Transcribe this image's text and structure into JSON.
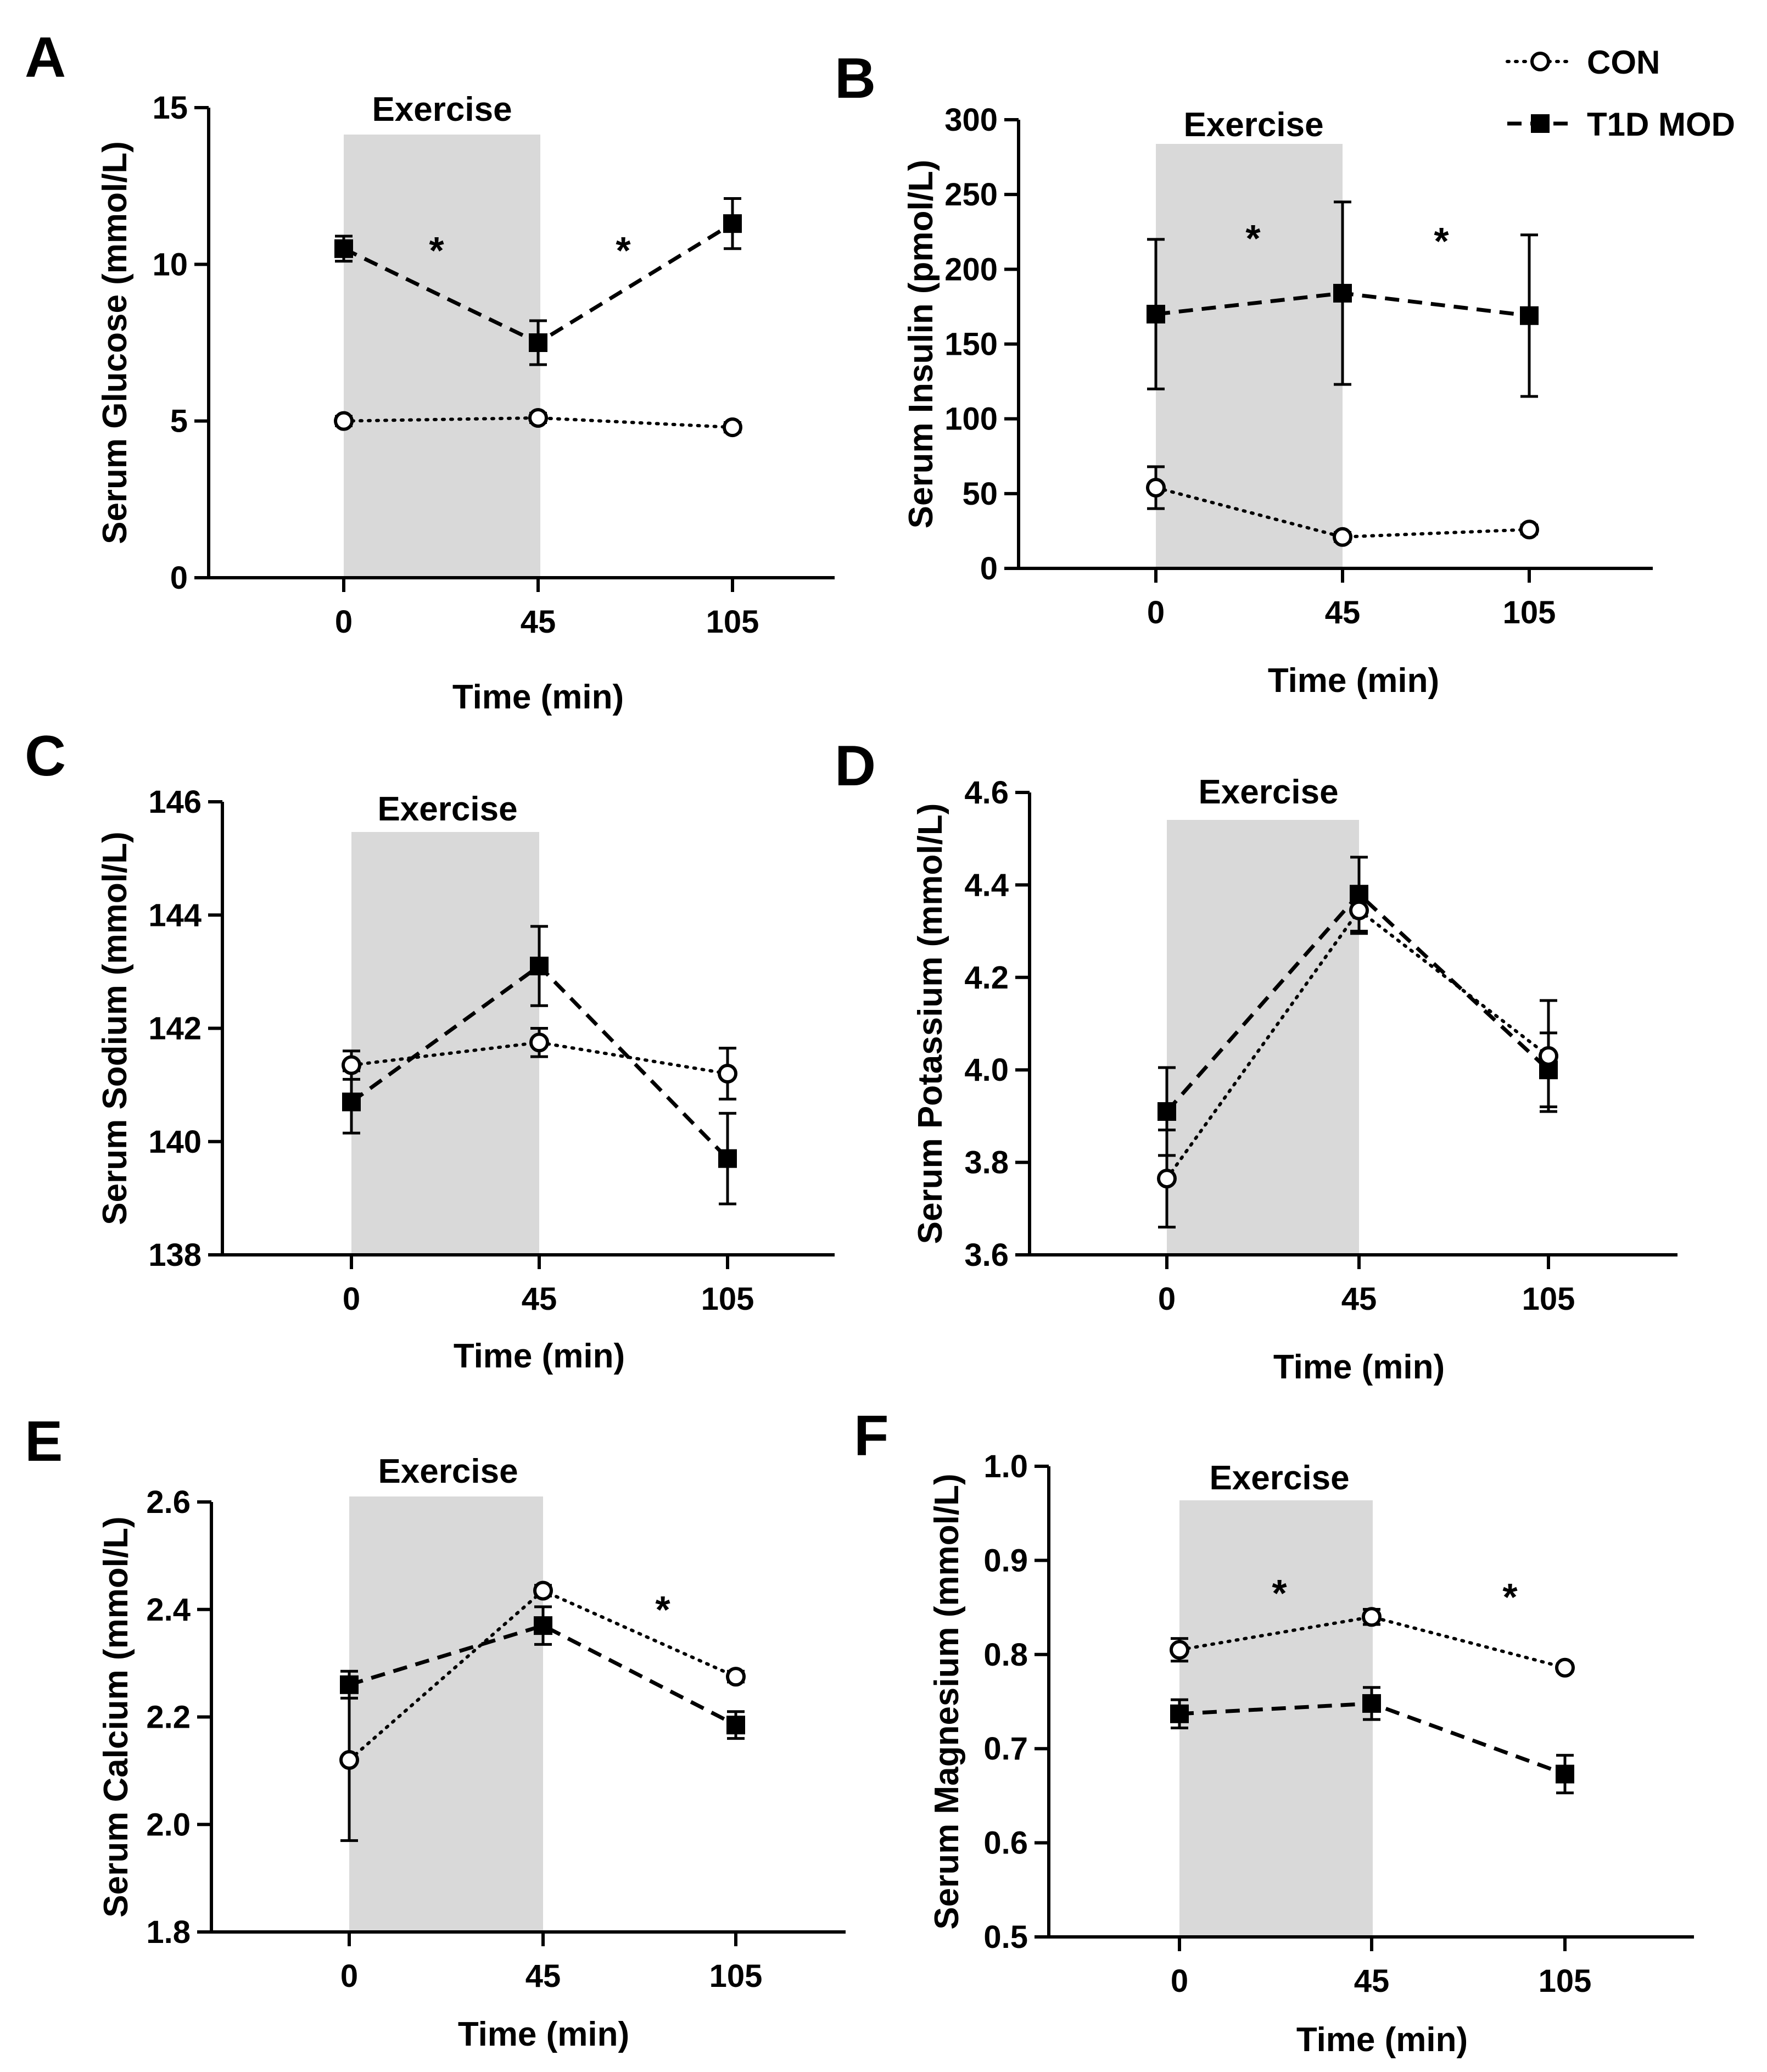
{
  "legend": [
    {
      "name": "CON",
      "marker": "open-circle",
      "line": "dotted"
    },
    {
      "name": "T1D MOD",
      "marker": "filled-square",
      "line": "dashed"
    }
  ],
  "colors": {
    "shade": "#d9d9d9",
    "ink": "#000000",
    "background": "#ffffff"
  },
  "chart_data": [
    {
      "type": "line",
      "panel": "A",
      "ylabel": "Serum Glucose (mmol/L)",
      "xlabel": "Time (min)",
      "categories": [
        "0",
        "45",
        "105"
      ],
      "ylim": [
        0,
        15
      ],
      "yticks": [
        0,
        5,
        10,
        15
      ],
      "ytick_labels": [
        "0",
        "5",
        "10",
        "15"
      ],
      "shade_label": "Exercise",
      "shade_range": [
        "0",
        "45"
      ],
      "series": [
        {
          "name": "CON",
          "values": [
            5.0,
            5.1,
            4.8
          ],
          "errors": [
            0.15,
            0.15,
            0.15
          ]
        },
        {
          "name": "T1D MOD",
          "values": [
            10.5,
            7.5,
            11.3
          ],
          "errors": [
            0.4,
            0.7,
            0.8
          ]
        }
      ],
      "annotations": [
        "*",
        "*"
      ]
    },
    {
      "type": "line",
      "panel": "B",
      "ylabel": "Serum Insulin (pmol/L)",
      "xlabel": "Time (min)",
      "categories": [
        "0",
        "45",
        "105"
      ],
      "ylim": [
        0,
        300
      ],
      "yticks": [
        0,
        50,
        100,
        150,
        200,
        250,
        300
      ],
      "ytick_labels": [
        "0",
        "50",
        "100",
        "150",
        "200",
        "250",
        "300"
      ],
      "shade_label": "Exercise",
      "shade_range": [
        "0",
        "45"
      ],
      "series": [
        {
          "name": "CON",
          "values": [
            54,
            21,
            26
          ],
          "errors": [
            14,
            3,
            3
          ]
        },
        {
          "name": "T1D MOD",
          "values": [
            170,
            184,
            169
          ],
          "errors": [
            50,
            61,
            54
          ]
        }
      ],
      "annotations": [
        "*",
        "*"
      ]
    },
    {
      "type": "line",
      "panel": "C",
      "ylabel": "Serum Sodium (mmol/L)",
      "xlabel": "Time (min)",
      "categories": [
        "0",
        "45",
        "105"
      ],
      "ylim": [
        138,
        146
      ],
      "yticks": [
        138,
        140,
        142,
        144,
        146
      ],
      "ytick_labels": [
        "138",
        "140",
        "142",
        "144",
        "146"
      ],
      "shade_label": "Exercise",
      "shade_range": [
        "0",
        "45"
      ],
      "series": [
        {
          "name": "CON",
          "values": [
            141.35,
            141.75,
            141.2
          ],
          "errors": [
            0.25,
            0.25,
            0.45
          ]
        },
        {
          "name": "T1D MOD",
          "values": [
            140.7,
            143.1,
            139.7
          ],
          "errors": [
            0.55,
            0.7,
            0.8
          ]
        }
      ],
      "annotations": []
    },
    {
      "type": "line",
      "panel": "D",
      "ylabel": "Serum Potassium (mmol/L)",
      "xlabel": "Time (min)",
      "categories": [
        "0",
        "45",
        "105"
      ],
      "ylim": [
        3.6,
        4.6
      ],
      "yticks": [
        3.6,
        3.8,
        4.0,
        4.2,
        4.4,
        4.6
      ],
      "ytick_labels": [
        "3.6",
        "3.8",
        "4.0",
        "4.2",
        "4.4",
        "4.6"
      ],
      "shade_label": "Exercise",
      "shade_range": [
        "0",
        "45"
      ],
      "series": [
        {
          "name": "CON",
          "values": [
            3.765,
            4.345,
            4.03
          ],
          "errors": [
            0.105,
            0.05,
            0.12
          ]
        },
        {
          "name": "T1D MOD",
          "values": [
            3.91,
            4.38,
            4.0
          ],
          "errors": [
            0.095,
            0.08,
            0.08
          ]
        }
      ],
      "annotations": []
    },
    {
      "type": "line",
      "panel": "E",
      "ylabel": "Serum Calcium (mmol/L)",
      "xlabel": "Time (min)",
      "categories": [
        "0",
        "45",
        "105"
      ],
      "ylim": [
        1.8,
        2.6
      ],
      "yticks": [
        1.8,
        2.0,
        2.2,
        2.4,
        2.6
      ],
      "ytick_labels": [
        "1.8",
        "2.0",
        "2.2",
        "2.4",
        "2.6"
      ],
      "shade_label": "Exercise",
      "shade_range": [
        "0",
        "45"
      ],
      "series": [
        {
          "name": "CON",
          "values": [
            2.12,
            2.435,
            2.275
          ],
          "errors": [
            0.15,
            0.01,
            0.01
          ]
        },
        {
          "name": "T1D MOD",
          "values": [
            2.26,
            2.37,
            2.185
          ],
          "errors": [
            0.025,
            0.035,
            0.025
          ]
        }
      ],
      "annotations": [
        "*"
      ]
    },
    {
      "type": "line",
      "panel": "F",
      "ylabel": "Serum Magnesium (mmol/L)",
      "xlabel": "Time (min)",
      "categories": [
        "0",
        "45",
        "105"
      ],
      "ylim": [
        0.5,
        1.0
      ],
      "yticks": [
        0.5,
        0.6,
        0.7,
        0.8,
        0.9,
        1.0
      ],
      "ytick_labels": [
        "0.5",
        "0.6",
        "0.7",
        "0.8",
        "0.9",
        "1.0"
      ],
      "shade_label": "Exercise",
      "shade_range": [
        "0",
        "45"
      ],
      "series": [
        {
          "name": "CON",
          "values": [
            0.805,
            0.84,
            0.786
          ],
          "errors": [
            0.012,
            0.008,
            0.004
          ]
        },
        {
          "name": "T1D MOD",
          "values": [
            0.737,
            0.748,
            0.673
          ],
          "errors": [
            0.015,
            0.017,
            0.02
          ]
        }
      ],
      "annotations": [
        "*",
        "*"
      ]
    }
  ]
}
